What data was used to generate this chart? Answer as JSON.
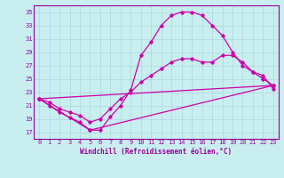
{
  "xlabel": "Windchill (Refroidissement éolien,°C)",
  "bg_color": "#c8eef0",
  "grid_color": "#b0dde0",
  "line_color": "#cc00aa",
  "spine_color": "#990099",
  "xlim": [
    -0.5,
    23.5
  ],
  "ylim": [
    16,
    36
  ],
  "yticks": [
    17,
    19,
    21,
    23,
    25,
    27,
    29,
    31,
    33,
    35
  ],
  "xticks": [
    0,
    1,
    2,
    3,
    4,
    5,
    6,
    7,
    8,
    9,
    10,
    11,
    12,
    13,
    14,
    15,
    16,
    17,
    18,
    19,
    20,
    21,
    22,
    23
  ],
  "line1_x": [
    0,
    1,
    2,
    3,
    4,
    5,
    6,
    7,
    8,
    9,
    10,
    11,
    12,
    13,
    14,
    15,
    16,
    17,
    18,
    19,
    20,
    21,
    22,
    23
  ],
  "line1_y": [
    22.0,
    21.0,
    20.0,
    19.2,
    18.5,
    17.3,
    17.3,
    19.3,
    21.0,
    23.3,
    28.5,
    30.5,
    33.0,
    34.5,
    35.0,
    35.0,
    34.5,
    33.0,
    31.5,
    29.0,
    27.0,
    26.0,
    25.5,
    23.5
  ],
  "line2_x": [
    0,
    1,
    2,
    3,
    4,
    5,
    6,
    7,
    8,
    9,
    10,
    11,
    12,
    13,
    14,
    15,
    16,
    17,
    18,
    19,
    20,
    21,
    22,
    23
  ],
  "line2_y": [
    22.0,
    21.5,
    20.5,
    20.0,
    19.5,
    18.5,
    19.0,
    20.5,
    22.0,
    23.0,
    24.5,
    25.5,
    26.5,
    27.5,
    28.0,
    28.0,
    27.5,
    27.5,
    28.5,
    28.5,
    27.5,
    26.0,
    25.0,
    24.0
  ],
  "line3_x": [
    0,
    23
  ],
  "line3_y": [
    22.0,
    24.0
  ],
  "line4_x": [
    0,
    5,
    23
  ],
  "line4_y": [
    22.0,
    17.3,
    24.0
  ]
}
